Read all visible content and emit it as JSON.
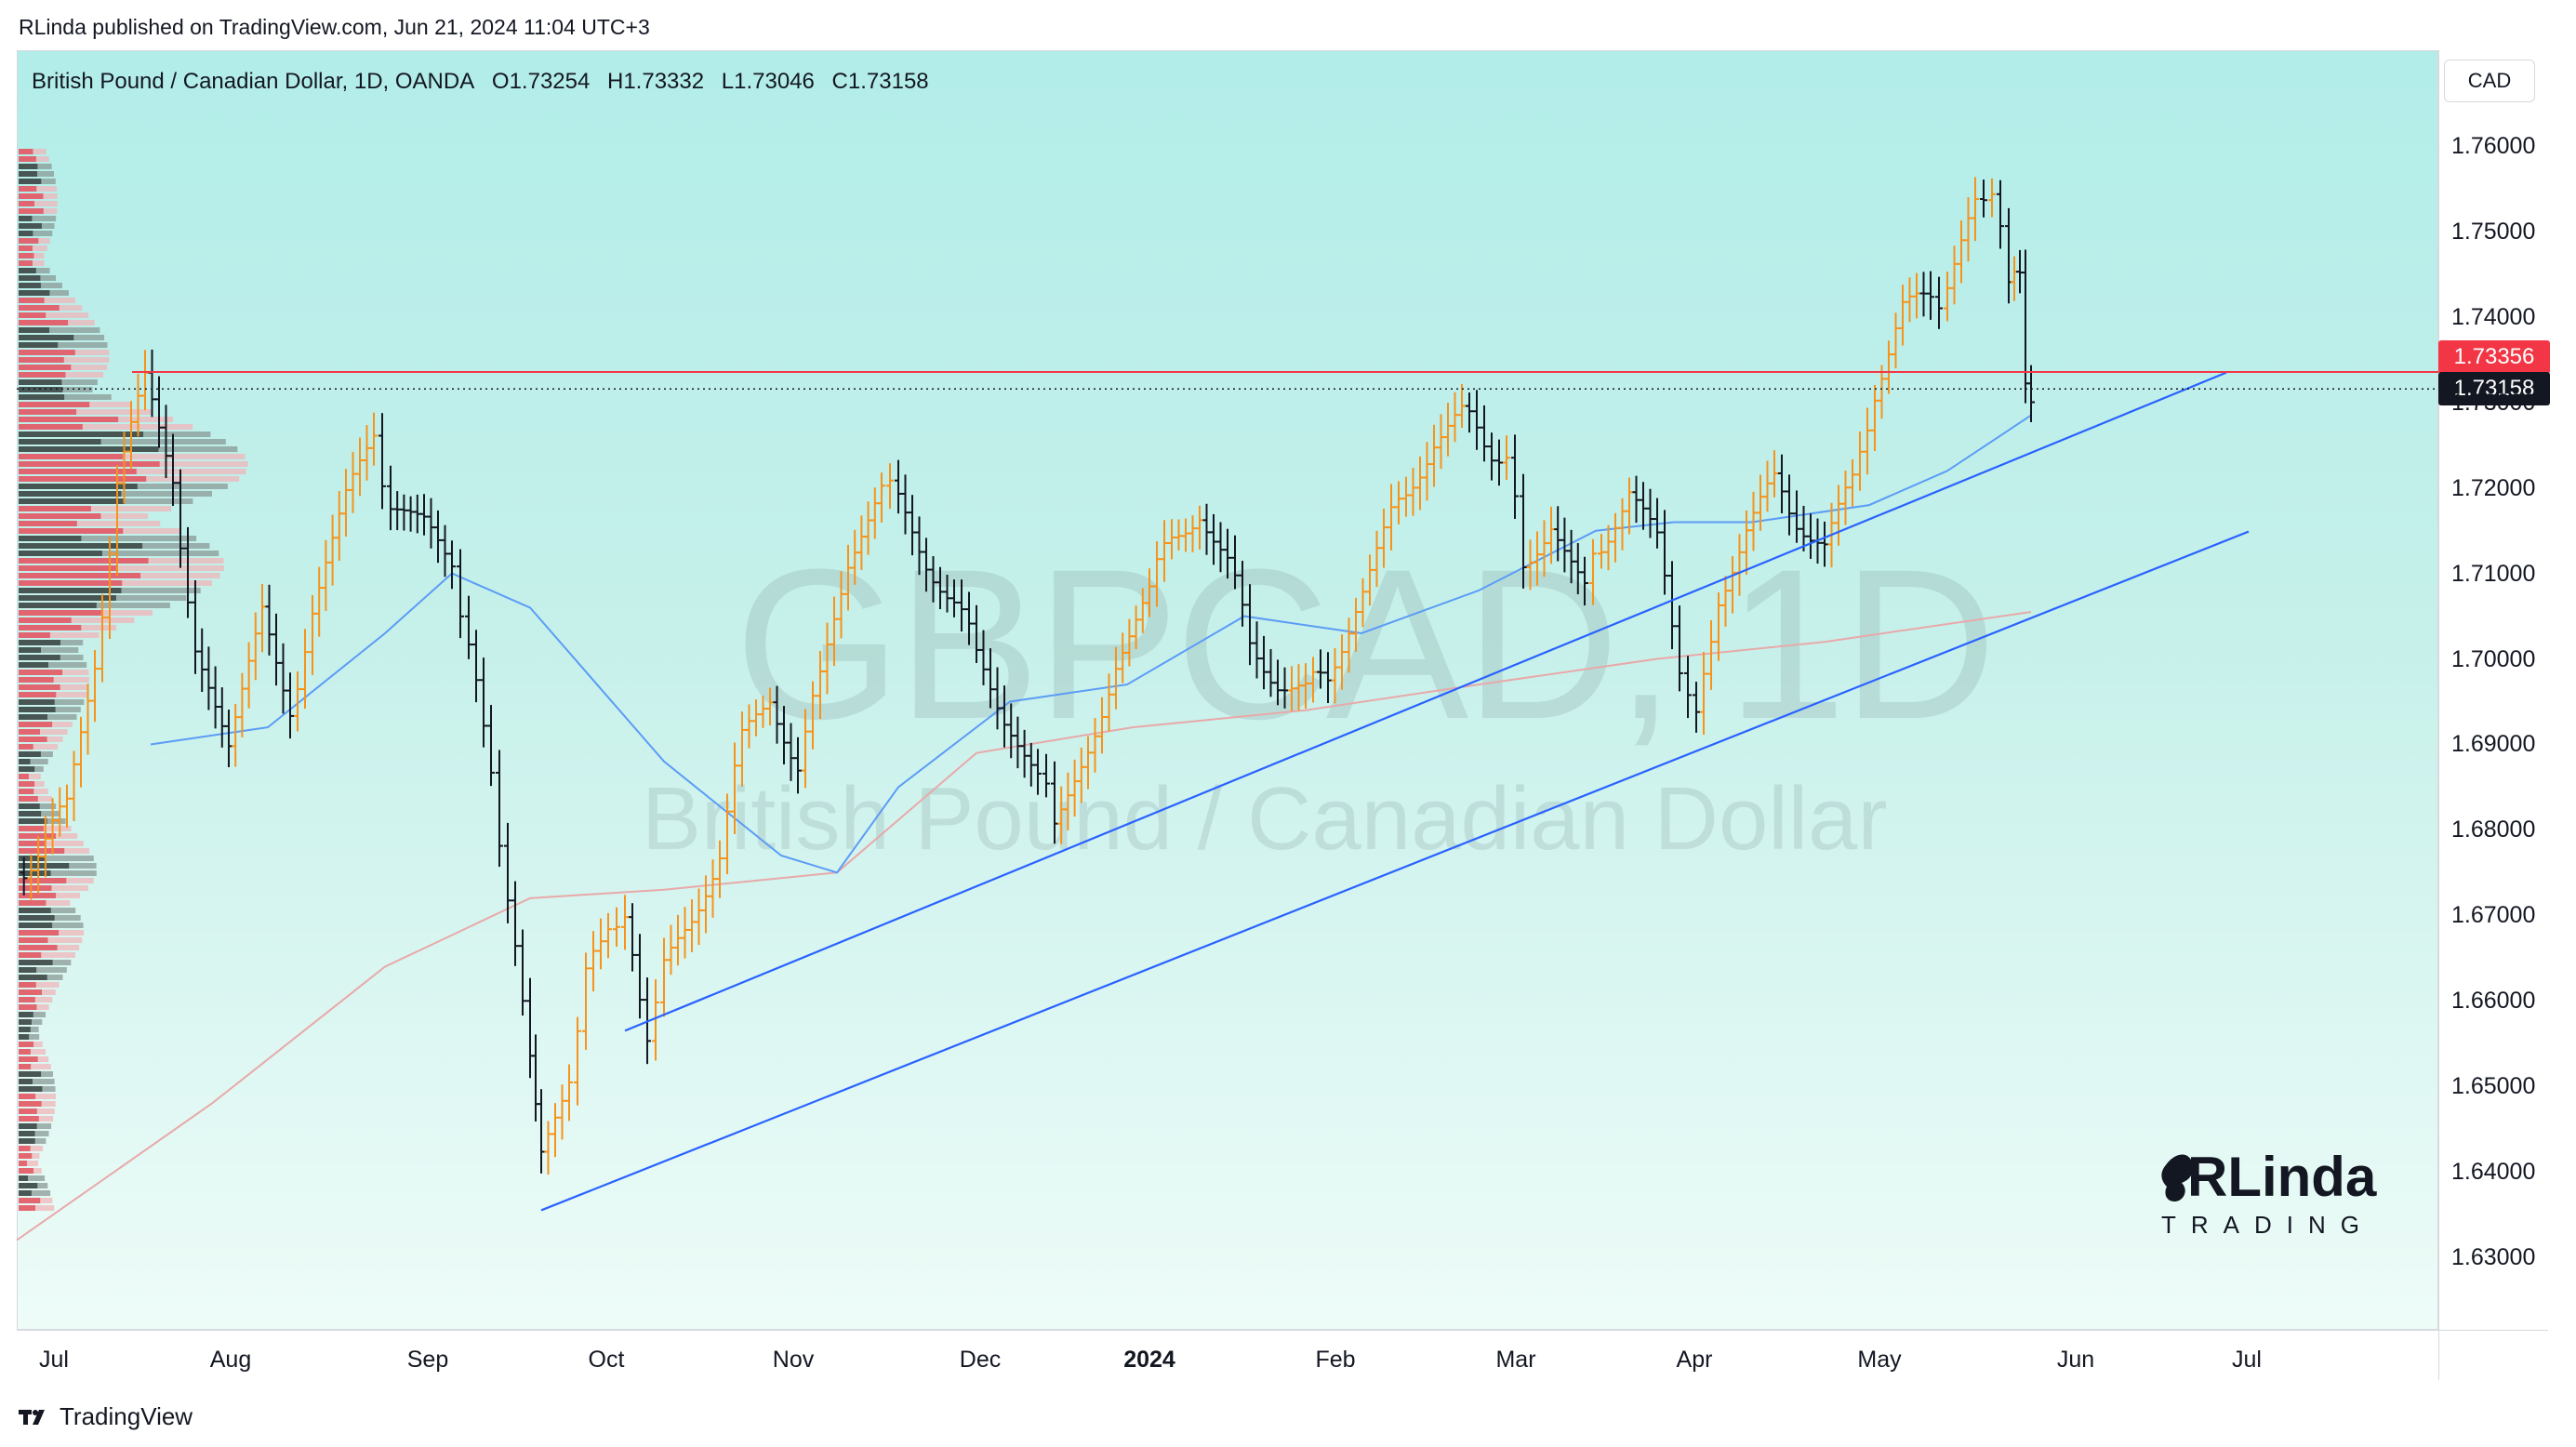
{
  "publish_header": "RLinda published on TradingView.com, Jun 21, 2024 11:04 UTC+3",
  "title_bar": {
    "symbol": "British Pound / Canadian Dollar, 1D, OANDA",
    "open": "O1.73254",
    "high": "H1.73332",
    "low": "L1.73046",
    "close": "C1.73158"
  },
  "currency_button": "CAD",
  "watermark": {
    "ticker": "GBPCAD, 1D",
    "name": "British Pound / Canadian Dollar"
  },
  "price_tags": {
    "level": "1.73356",
    "close": "1.73158"
  },
  "footer": {
    "brand": "TradingView"
  },
  "logo": {
    "main": "RLinda",
    "sub": "TRADING"
  },
  "colors": {
    "up_bar": "#f7931a",
    "down_bar": "#131722",
    "trendline": "#2962ff",
    "level_line": "#f23645",
    "ma_fast": "#5b9cf6",
    "ma_slow": "#e8a9a9",
    "bg_top": "#b2ede9",
    "bg_bottom": "#eefcf8"
  },
  "chart_data": {
    "type": "ohlc",
    "symbol": "GBPCAD",
    "timeframe": "1D",
    "ylim": [
      1.6225,
      1.7615
    ],
    "y_ticks": [
      "1.76000",
      "1.75000",
      "1.74000",
      "1.73000",
      "1.72000",
      "1.71000",
      "1.70000",
      "1.69000",
      "1.68000",
      "1.67000",
      "1.66000",
      "1.65000",
      "1.64000",
      "1.63000"
    ],
    "x_ticks": [
      "Jul",
      "Aug",
      "Sep",
      "Oct",
      "Nov",
      "Dec",
      "2024",
      "Feb",
      "Mar",
      "Apr",
      "May",
      "Jun",
      "Jul"
    ],
    "close_series": [
      [
        "2023-06-26",
        1.675
      ],
      [
        "2023-07-05",
        1.682
      ],
      [
        "2023-07-10",
        1.7
      ],
      [
        "2023-07-14",
        1.72
      ],
      [
        "2023-07-19",
        1.732
      ],
      [
        "2023-07-24",
        1.722
      ],
      [
        "2023-07-28",
        1.7
      ],
      [
        "2023-08-03",
        1.688
      ],
      [
        "2023-08-09",
        1.705
      ],
      [
        "2023-08-14",
        1.695
      ],
      [
        "2023-08-18",
        1.704
      ],
      [
        "2023-08-24",
        1.718
      ],
      [
        "2023-08-29",
        1.727
      ],
      [
        "2023-09-01",
        1.716
      ],
      [
        "2023-09-07",
        1.715
      ],
      [
        "2023-09-12",
        1.712
      ],
      [
        "2023-09-15",
        1.7
      ],
      [
        "2023-09-19",
        1.688
      ],
      [
        "2023-09-22",
        1.67
      ],
      [
        "2023-09-26",
        1.655
      ],
      [
        "2023-09-28",
        1.641
      ],
      [
        "2023-10-03",
        1.652
      ],
      [
        "2023-10-06",
        1.662
      ],
      [
        "2023-10-10",
        1.67
      ],
      [
        "2023-10-13",
        1.668
      ],
      [
        "2023-10-17",
        1.657
      ],
      [
        "2023-10-20",
        1.663
      ],
      [
        "2023-10-25",
        1.67
      ],
      [
        "2023-10-30",
        1.678
      ],
      [
        "2023-11-03",
        1.69
      ],
      [
        "2023-11-08",
        1.696
      ],
      [
        "2023-11-13",
        1.688
      ],
      [
        "2023-11-17",
        1.697
      ],
      [
        "2023-11-22",
        1.712
      ],
      [
        "2023-11-28",
        1.722
      ],
      [
        "2023-12-01",
        1.718
      ],
      [
        "2023-12-06",
        1.712
      ],
      [
        "2023-12-11",
        1.707
      ],
      [
        "2023-12-15",
        1.7
      ],
      [
        "2023-12-20",
        1.694
      ],
      [
        "2023-12-26",
        1.688
      ],
      [
        "2023-12-29",
        1.68
      ],
      [
        "2024-01-04",
        1.69
      ],
      [
        "2024-01-09",
        1.7
      ],
      [
        "2024-01-15",
        1.708
      ],
      [
        "2024-01-19",
        1.714
      ],
      [
        "2024-01-24",
        1.718
      ],
      [
        "2024-01-29",
        1.711
      ],
      [
        "2024-02-02",
        1.702
      ],
      [
        "2024-02-07",
        1.698
      ],
      [
        "2024-02-12",
        1.696
      ],
      [
        "2024-02-16",
        1.698
      ],
      [
        "2024-02-21",
        1.707
      ],
      [
        "2024-02-26",
        1.714
      ],
      [
        "2024-03-01",
        1.72
      ],
      [
        "2024-03-06",
        1.726
      ],
      [
        "2024-03-11",
        1.728
      ],
      [
        "2024-03-15",
        1.726
      ],
      [
        "2024-03-19",
        1.723
      ],
      [
        "2024-03-22",
        1.712
      ],
      [
        "2024-03-27",
        1.716
      ],
      [
        "2024-04-02",
        1.708
      ],
      [
        "2024-04-05",
        1.714
      ],
      [
        "2024-04-10",
        1.72
      ],
      [
        "2024-04-15",
        1.713
      ],
      [
        "2024-04-19",
        1.7
      ],
      [
        "2024-04-22",
        1.692
      ],
      [
        "2024-04-26",
        1.708
      ],
      [
        "2024-05-01",
        1.715
      ],
      [
        "2024-05-06",
        1.72
      ],
      [
        "2024-05-10",
        1.717
      ],
      [
        "2024-05-15",
        1.713
      ],
      [
        "2024-05-20",
        1.72
      ],
      [
        "2024-05-24",
        1.732
      ],
      [
        "2024-05-29",
        1.741
      ],
      [
        "2024-06-03",
        1.741
      ],
      [
        "2024-06-06",
        1.744
      ],
      [
        "2024-06-11",
        1.752
      ],
      [
        "2024-06-14",
        1.756
      ],
      [
        "2024-06-17",
        1.743
      ],
      [
        "2024-06-19",
        1.744
      ],
      [
        "2024-06-20",
        1.7325
      ],
      [
        "2024-06-21",
        1.73158
      ]
    ],
    "ma_fast": [
      [
        "2023-07-20",
        1.69
      ],
      [
        "2023-08-10",
        1.692
      ],
      [
        "2023-08-31",
        1.703
      ],
      [
        "2023-09-12",
        1.71
      ],
      [
        "2023-09-26",
        1.706
      ],
      [
        "2023-10-20",
        1.688
      ],
      [
        "2023-11-10",
        1.677
      ],
      [
        "2023-11-20",
        1.675
      ],
      [
        "2023-12-01",
        1.685
      ],
      [
        "2023-12-21",
        1.695
      ],
      [
        "2024-01-11",
        1.697
      ],
      [
        "2024-02-01",
        1.705
      ],
      [
        "2024-02-22",
        1.703
      ],
      [
        "2024-03-14",
        1.708
      ],
      [
        "2024-04-04",
        1.715
      ],
      [
        "2024-04-18",
        1.716
      ],
      [
        "2024-05-02",
        1.716
      ],
      [
        "2024-05-23",
        1.718
      ],
      [
        "2024-06-06",
        1.722
      ],
      [
        "2024-06-21",
        1.7285
      ]
    ],
    "ma_slow": [
      [
        "2023-06-26",
        1.632
      ],
      [
        "2023-07-31",
        1.648
      ],
      [
        "2023-08-31",
        1.664
      ],
      [
        "2023-09-26",
        1.672
      ],
      [
        "2023-10-20",
        1.673
      ],
      [
        "2023-11-20",
        1.675
      ],
      [
        "2023-12-15",
        1.689
      ],
      [
        "2024-01-12",
        1.692
      ],
      [
        "2024-02-12",
        1.694
      ],
      [
        "2024-03-14",
        1.697
      ],
      [
        "2024-04-15",
        1.7
      ],
      [
        "2024-05-15",
        1.702
      ],
      [
        "2024-06-21",
        1.7055
      ]
    ],
    "horizontal_level": 1.73356,
    "last_close": 1.73158,
    "trendlines": [
      {
        "from": [
          "2023-10-13",
          1.6565
        ],
        "to": [
          "2024-07-26",
          1.7335
        ]
      },
      {
        "from": [
          "2023-09-28",
          1.6355
        ],
        "to": [
          "2024-07-30",
          1.7149
        ]
      }
    ]
  }
}
